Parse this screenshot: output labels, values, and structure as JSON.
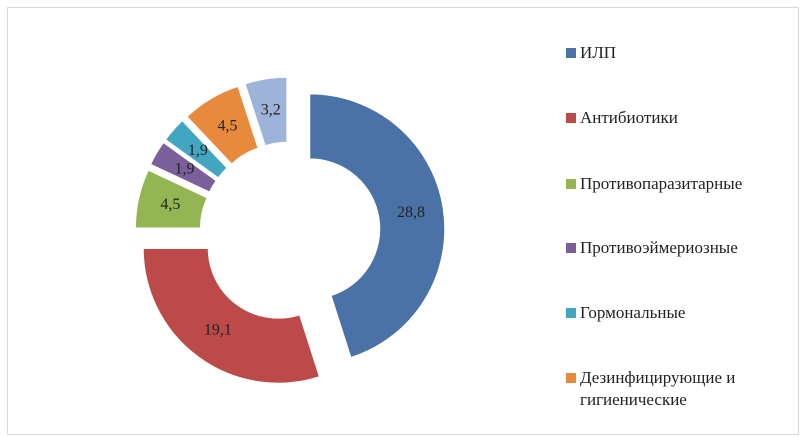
{
  "chart_data": {
    "type": "donut",
    "categories": [
      "ИЛП",
      "Антибиотики",
      "Противопаразитарные",
      "Противоэймериозные",
      "Гормональные",
      "Дезинфицирующие и гигиенические",
      null
    ],
    "values": [
      28.8,
      19.1,
      4.5,
      1.9,
      1.9,
      4.5,
      3.2
    ],
    "value_labels": [
      "28,8",
      "19,1",
      "4,5",
      "1,9",
      "1,9",
      "4,5",
      "3,2"
    ],
    "colors": [
      "#4a72a6",
      "#bb4a48",
      "#93b553",
      "#7a5f9a",
      "#43a6c0",
      "#e88a3e",
      "#9db3d8"
    ],
    "legend": "right"
  }
}
